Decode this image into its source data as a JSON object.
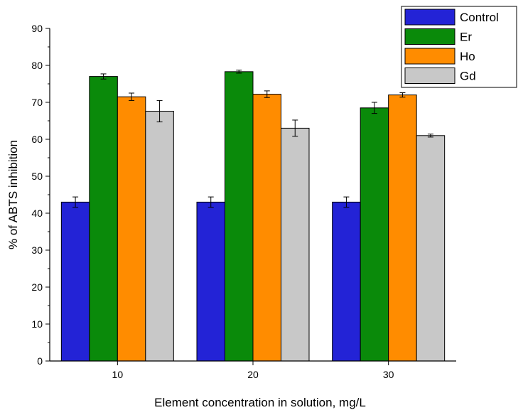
{
  "chart_data": {
    "type": "bar",
    "title": "",
    "xlabel": "Element concentration in solution, mg/L",
    "ylabel": "% of ABTS inhibition",
    "categories": [
      "10",
      "20",
      "30"
    ],
    "ylim": [
      0,
      90
    ],
    "yticks": [
      0,
      10,
      20,
      30,
      40,
      50,
      60,
      70,
      80,
      90
    ],
    "grid": false,
    "legend_position": "top-right",
    "series": [
      {
        "name": "Control",
        "color": "#2323d6",
        "values": [
          43.0,
          43.0,
          43.0
        ],
        "errors": [
          1.4,
          1.4,
          1.4
        ]
      },
      {
        "name": "Er",
        "color": "#0a8a0a",
        "values": [
          77.0,
          78.3,
          68.5
        ],
        "errors": [
          0.7,
          0.4,
          1.5
        ]
      },
      {
        "name": "Ho",
        "color": "#ff8c00",
        "values": [
          71.5,
          72.2,
          72.0
        ],
        "errors": [
          1.0,
          0.9,
          0.6
        ]
      },
      {
        "name": "Gd",
        "color": "#c8c8c8",
        "values": [
          67.6,
          63.0,
          61.0
        ],
        "errors": [
          2.9,
          2.2,
          0.4
        ]
      }
    ]
  }
}
